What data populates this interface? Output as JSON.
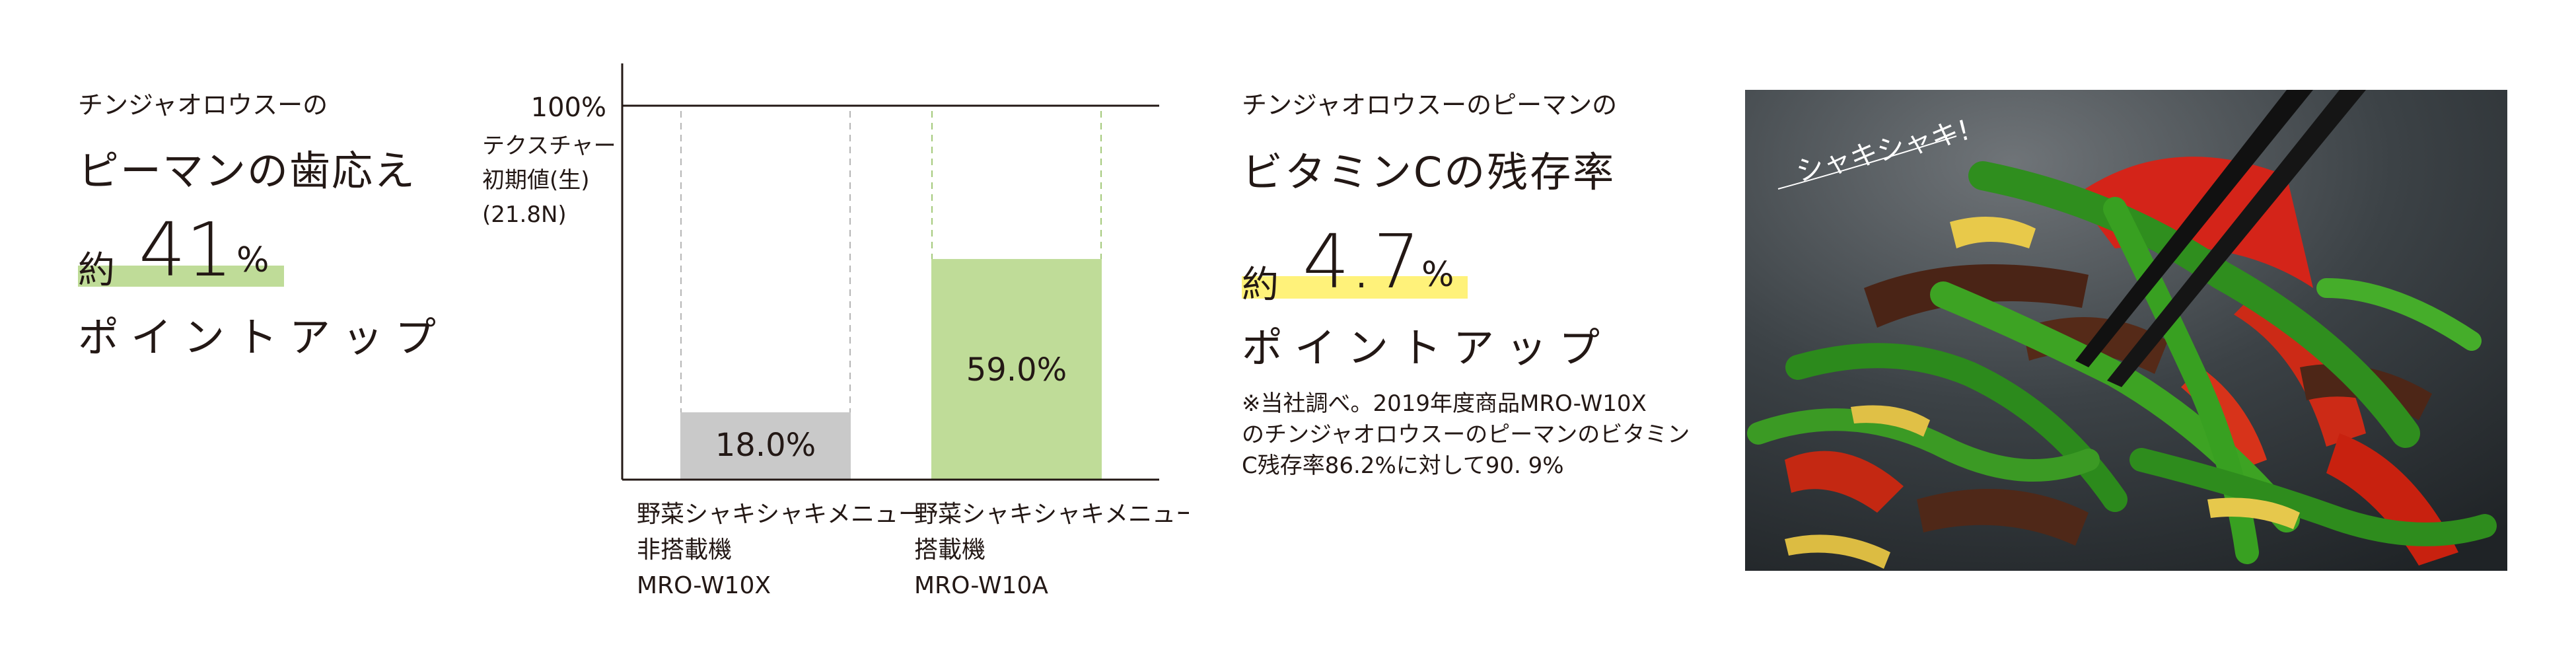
{
  "left": {
    "subtitle": "チンジャオロウスーの",
    "title": "ピーマンの歯応え",
    "stat_prefix": "約",
    "stat_value": "41",
    "stat_unit": "%",
    "up": "ポイントアップ"
  },
  "chart_data": {
    "type": "bar",
    "ylabel": [
      "テクスチャー",
      "初期値(生)",
      "(21.8N)"
    ],
    "reference_label": "100%",
    "ylim": [
      0,
      100
    ],
    "categories": [
      [
        "野菜シャキシャキメニュー",
        "非搭載機",
        "MRO-W10X"
      ],
      [
        "野菜シャキシャキメニュー",
        "搭載機",
        "MRO-W10A"
      ]
    ],
    "values": [
      18.0,
      59.0
    ],
    "value_labels": [
      "18.0%",
      "59.0%"
    ],
    "colors": [
      "#c9c9c9",
      "#bfdc98"
    ],
    "outline_colors": [
      "#b5b5b5",
      "#a3c97a"
    ]
  },
  "right": {
    "subtitle": "チンジャオロウスーのピーマンの",
    "title": "ビタミンCの残存率",
    "stat_prefix": "約",
    "stat_value": "4.7",
    "stat_unit": "%",
    "up": "ポイントアップ",
    "note": [
      "※当社調べ。2019年度商品MRO-W10X",
      "のチンジャオロウスーのピーマンのビタミン",
      "C残存率86.2%に対して90. 9%"
    ]
  },
  "photo": {
    "caption": "シャキシャキ!"
  }
}
